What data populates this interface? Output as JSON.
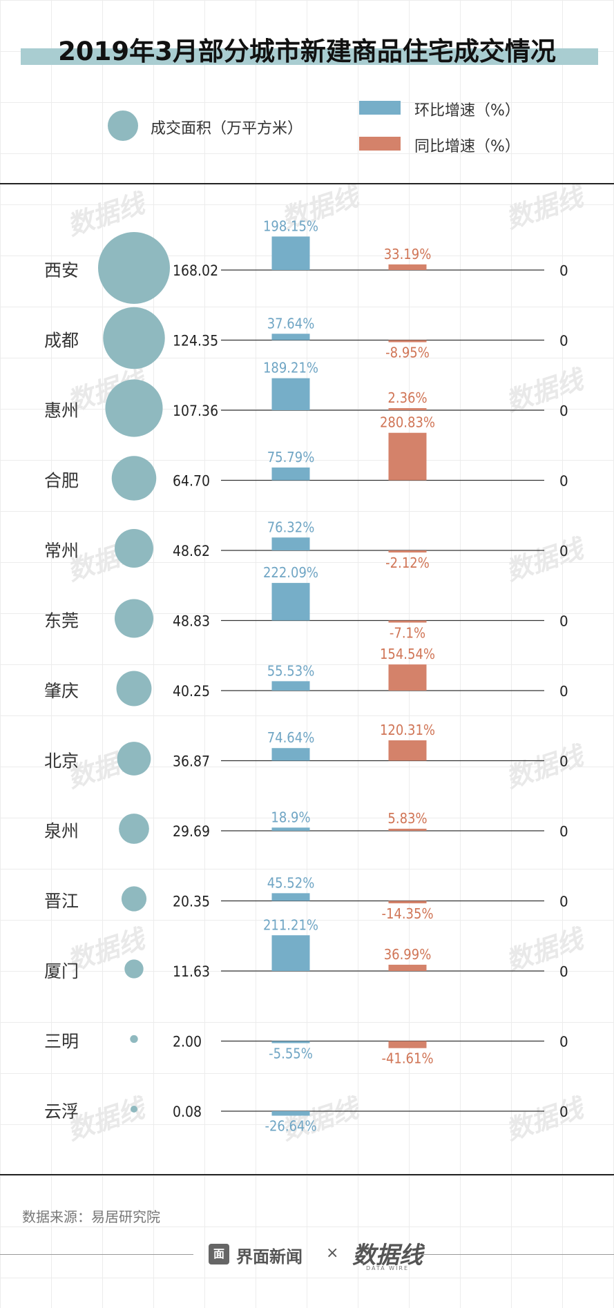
{
  "title": "2019年3月部分城市新建商品住宅成交情况",
  "legend": {
    "area": "成交面积（万平方米）",
    "mom": "环比增速（%）",
    "yoy": "同比增速（%）"
  },
  "colors": {
    "circle": "#8fb9bf",
    "mom": "#76aec8",
    "yoy": "#d4826a",
    "mom_text": "#6fa5c4",
    "yoy_text": "#d07556",
    "axis": "#333333"
  },
  "chart_data": {
    "type": "bar",
    "categories": [
      "西安",
      "成都",
      "惠州",
      "合肥",
      "常州",
      "东莞",
      "肇庆",
      "北京",
      "泉州",
      "晋江",
      "厦门",
      "三明",
      "云浮"
    ],
    "area": [
      168.02,
      124.35,
      107.36,
      64.7,
      48.62,
      48.83,
      40.25,
      36.87,
      29.69,
      20.35,
      11.63,
      2.0,
      0.08
    ],
    "area_labels": [
      "168.02",
      "124.35",
      "107.36",
      "64.70",
      "48.62",
      "48.83",
      "40.25",
      "36.87",
      "29.69",
      "20.35",
      "11.63",
      "2.00",
      "0.08"
    ],
    "series": [
      {
        "name": "环比增速（%）",
        "values": [
          198.15,
          37.64,
          189.21,
          75.79,
          76.32,
          222.09,
          55.53,
          74.64,
          18.9,
          45.52,
          211.21,
          -5.55,
          -26.64
        ],
        "labels": [
          "198.15%",
          "37.64%",
          "189.21%",
          "75.79%",
          "76.32%",
          "222.09%",
          "55.53%",
          "74.64%",
          "18.9%",
          "45.52%",
          "211.21%",
          "-5.55%",
          "-26.64%"
        ]
      },
      {
        "name": "同比增速（%）",
        "values": [
          33.19,
          -8.95,
          2.36,
          280.83,
          -2.12,
          -7.1,
          154.54,
          120.31,
          5.83,
          -14.35,
          36.99,
          -41.61,
          null
        ],
        "labels": [
          "33.19%",
          "-8.95%",
          "2.36%",
          "280.83%",
          "-2.12%",
          "-7.1%",
          "154.54%",
          "120.31%",
          "5.83%",
          "-14.35%",
          "36.99%",
          "-41.61%",
          ""
        ]
      }
    ],
    "zero_label": "0"
  },
  "footer": {
    "source": "数据来源：易居研究院",
    "brand": "界面新闻",
    "brand_icon": "面",
    "cross": "×",
    "partner": "数据线",
    "partner_sub": "DATA WIRE"
  },
  "watermark": "数据线"
}
